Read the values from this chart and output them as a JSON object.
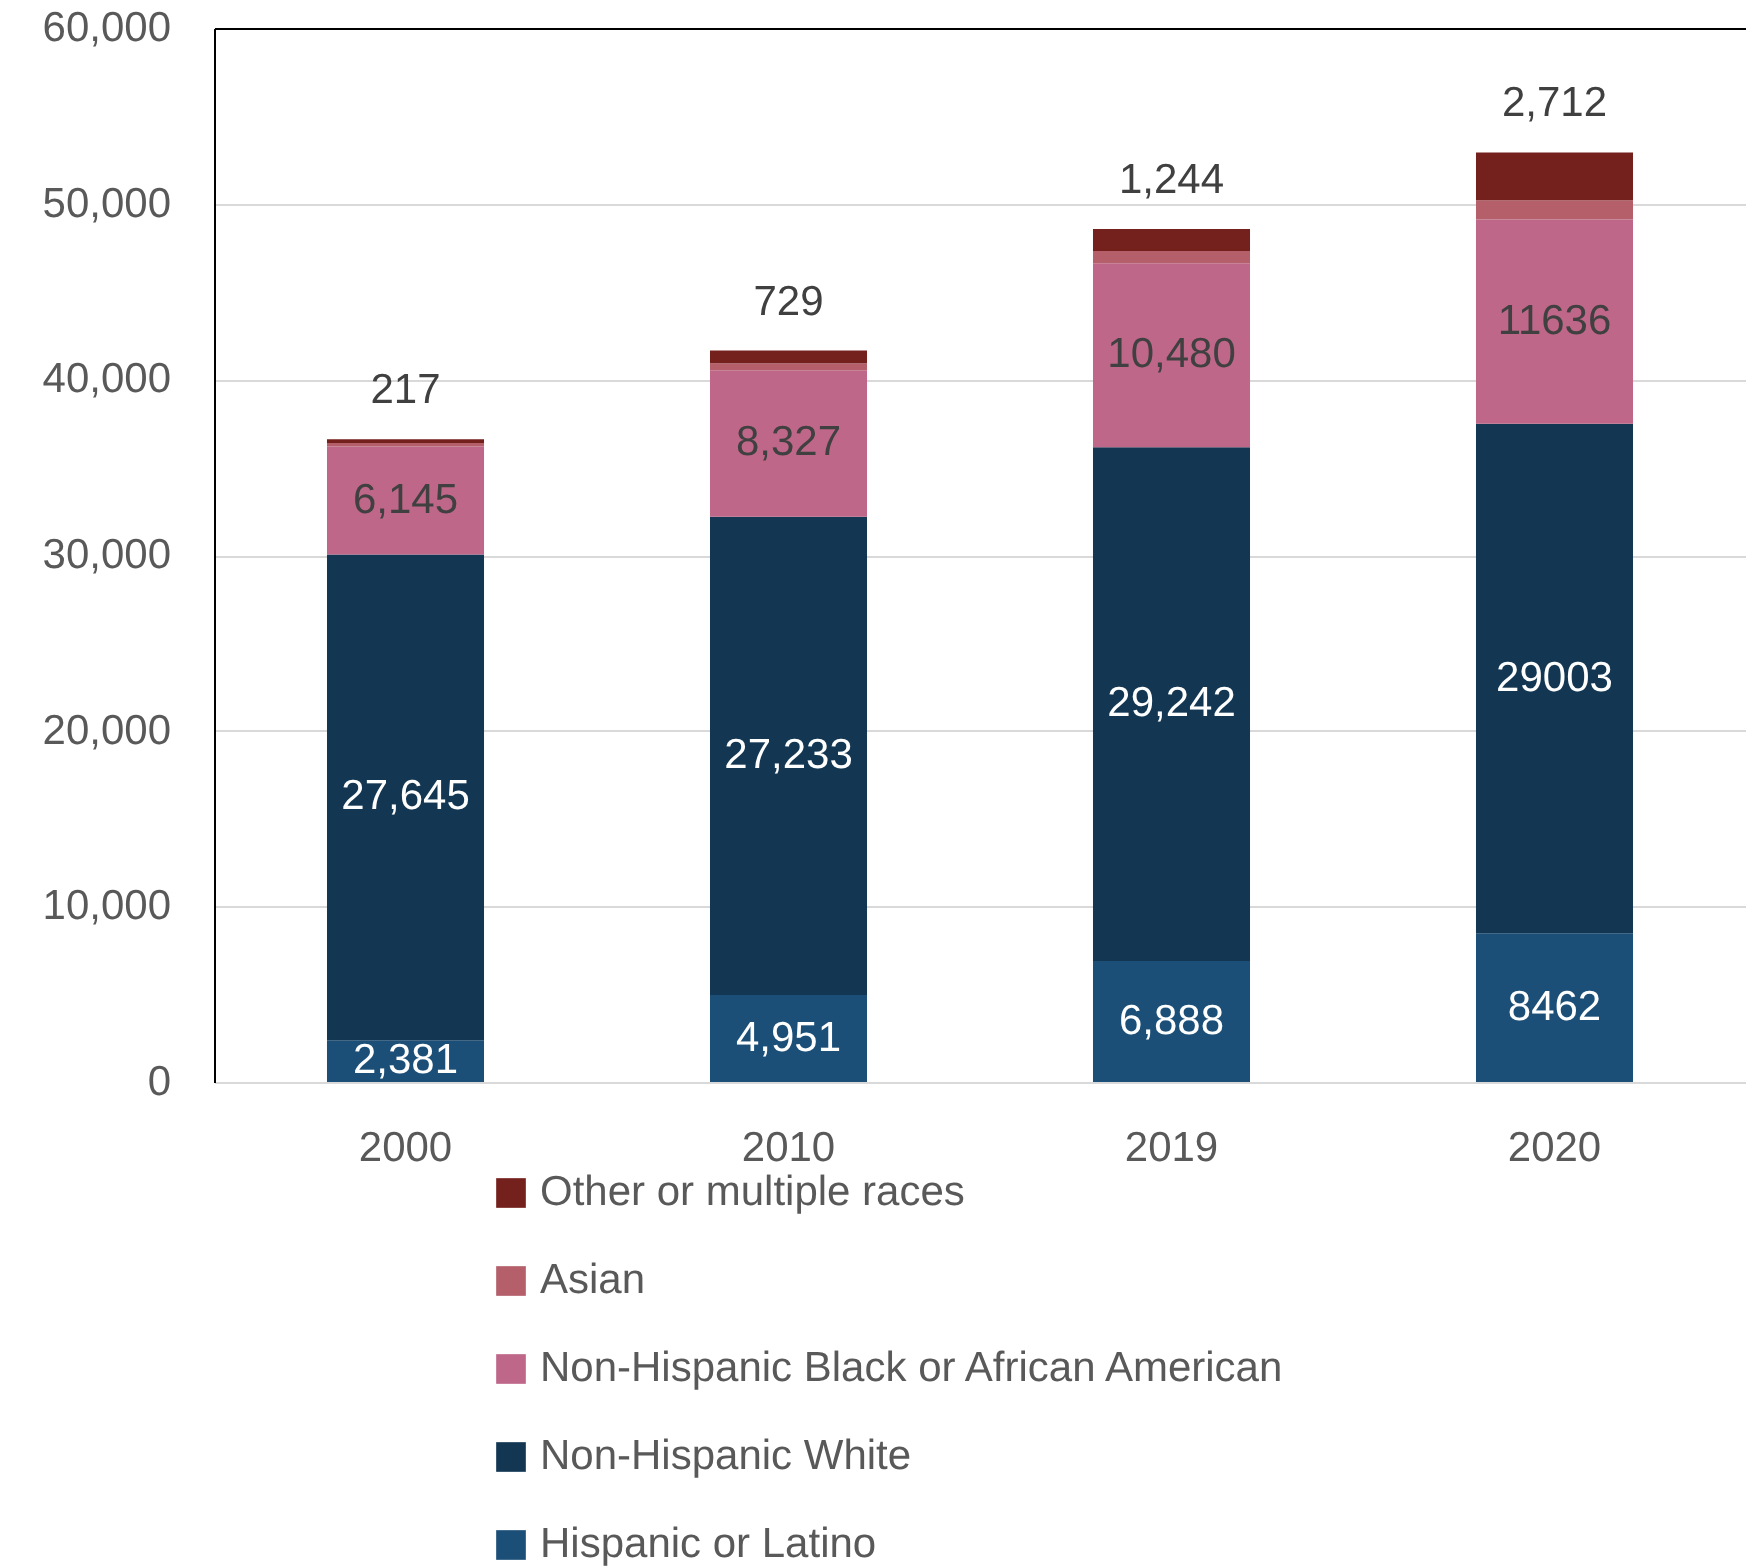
{
  "chart_data": {
    "type": "bar",
    "stacked": true,
    "categories": [
      "2000",
      "2010",
      "2019",
      "2020"
    ],
    "series": [
      {
        "name": "Hispanic or Latino",
        "color": "#1b4f78",
        "values": [
          2381,
          4951,
          6888,
          8462
        ],
        "value_labels": [
          "2,381",
          "4,951",
          "6,888",
          "8462"
        ]
      },
      {
        "name": "Non-Hispanic White",
        "color": "#133752",
        "values": [
          27645,
          27233,
          29242,
          29003
        ],
        "value_labels": [
          "27,645",
          "27,233",
          "29,242",
          "29003"
        ]
      },
      {
        "name": "Non-Hispanic Black or African American",
        "color": "#bf6789",
        "values": [
          6145,
          8327,
          10480,
          11636
        ],
        "value_labels": [
          "6,145",
          "8,327",
          "10,480",
          "11636"
        ]
      },
      {
        "name": "Asian",
        "color": "#b45f6a",
        "values": [
          200,
          400,
          700,
          1100
        ]
      },
      {
        "name": "Other or multiple races",
        "color": "#74201d",
        "values": [
          217,
          729,
          1244,
          2712
        ],
        "value_labels": [
          "217",
          "729",
          "1,244",
          "2,712"
        ]
      }
    ],
    "ylim": [
      0,
      60000
    ],
    "yticks": [
      0,
      {
        "value": 10000,
        "label": "10,000"
      },
      {
        "value": 20000,
        "label": "20,000"
      },
      {
        "value": 30000,
        "label": "30,000"
      },
      {
        "value": 40000,
        "label": "40,000"
      },
      {
        "value": 50000,
        "label": "50,000"
      },
      {
        "value": 60000,
        "label": "60,000"
      }
    ],
    "grid": "y",
    "legend": "bottom"
  }
}
